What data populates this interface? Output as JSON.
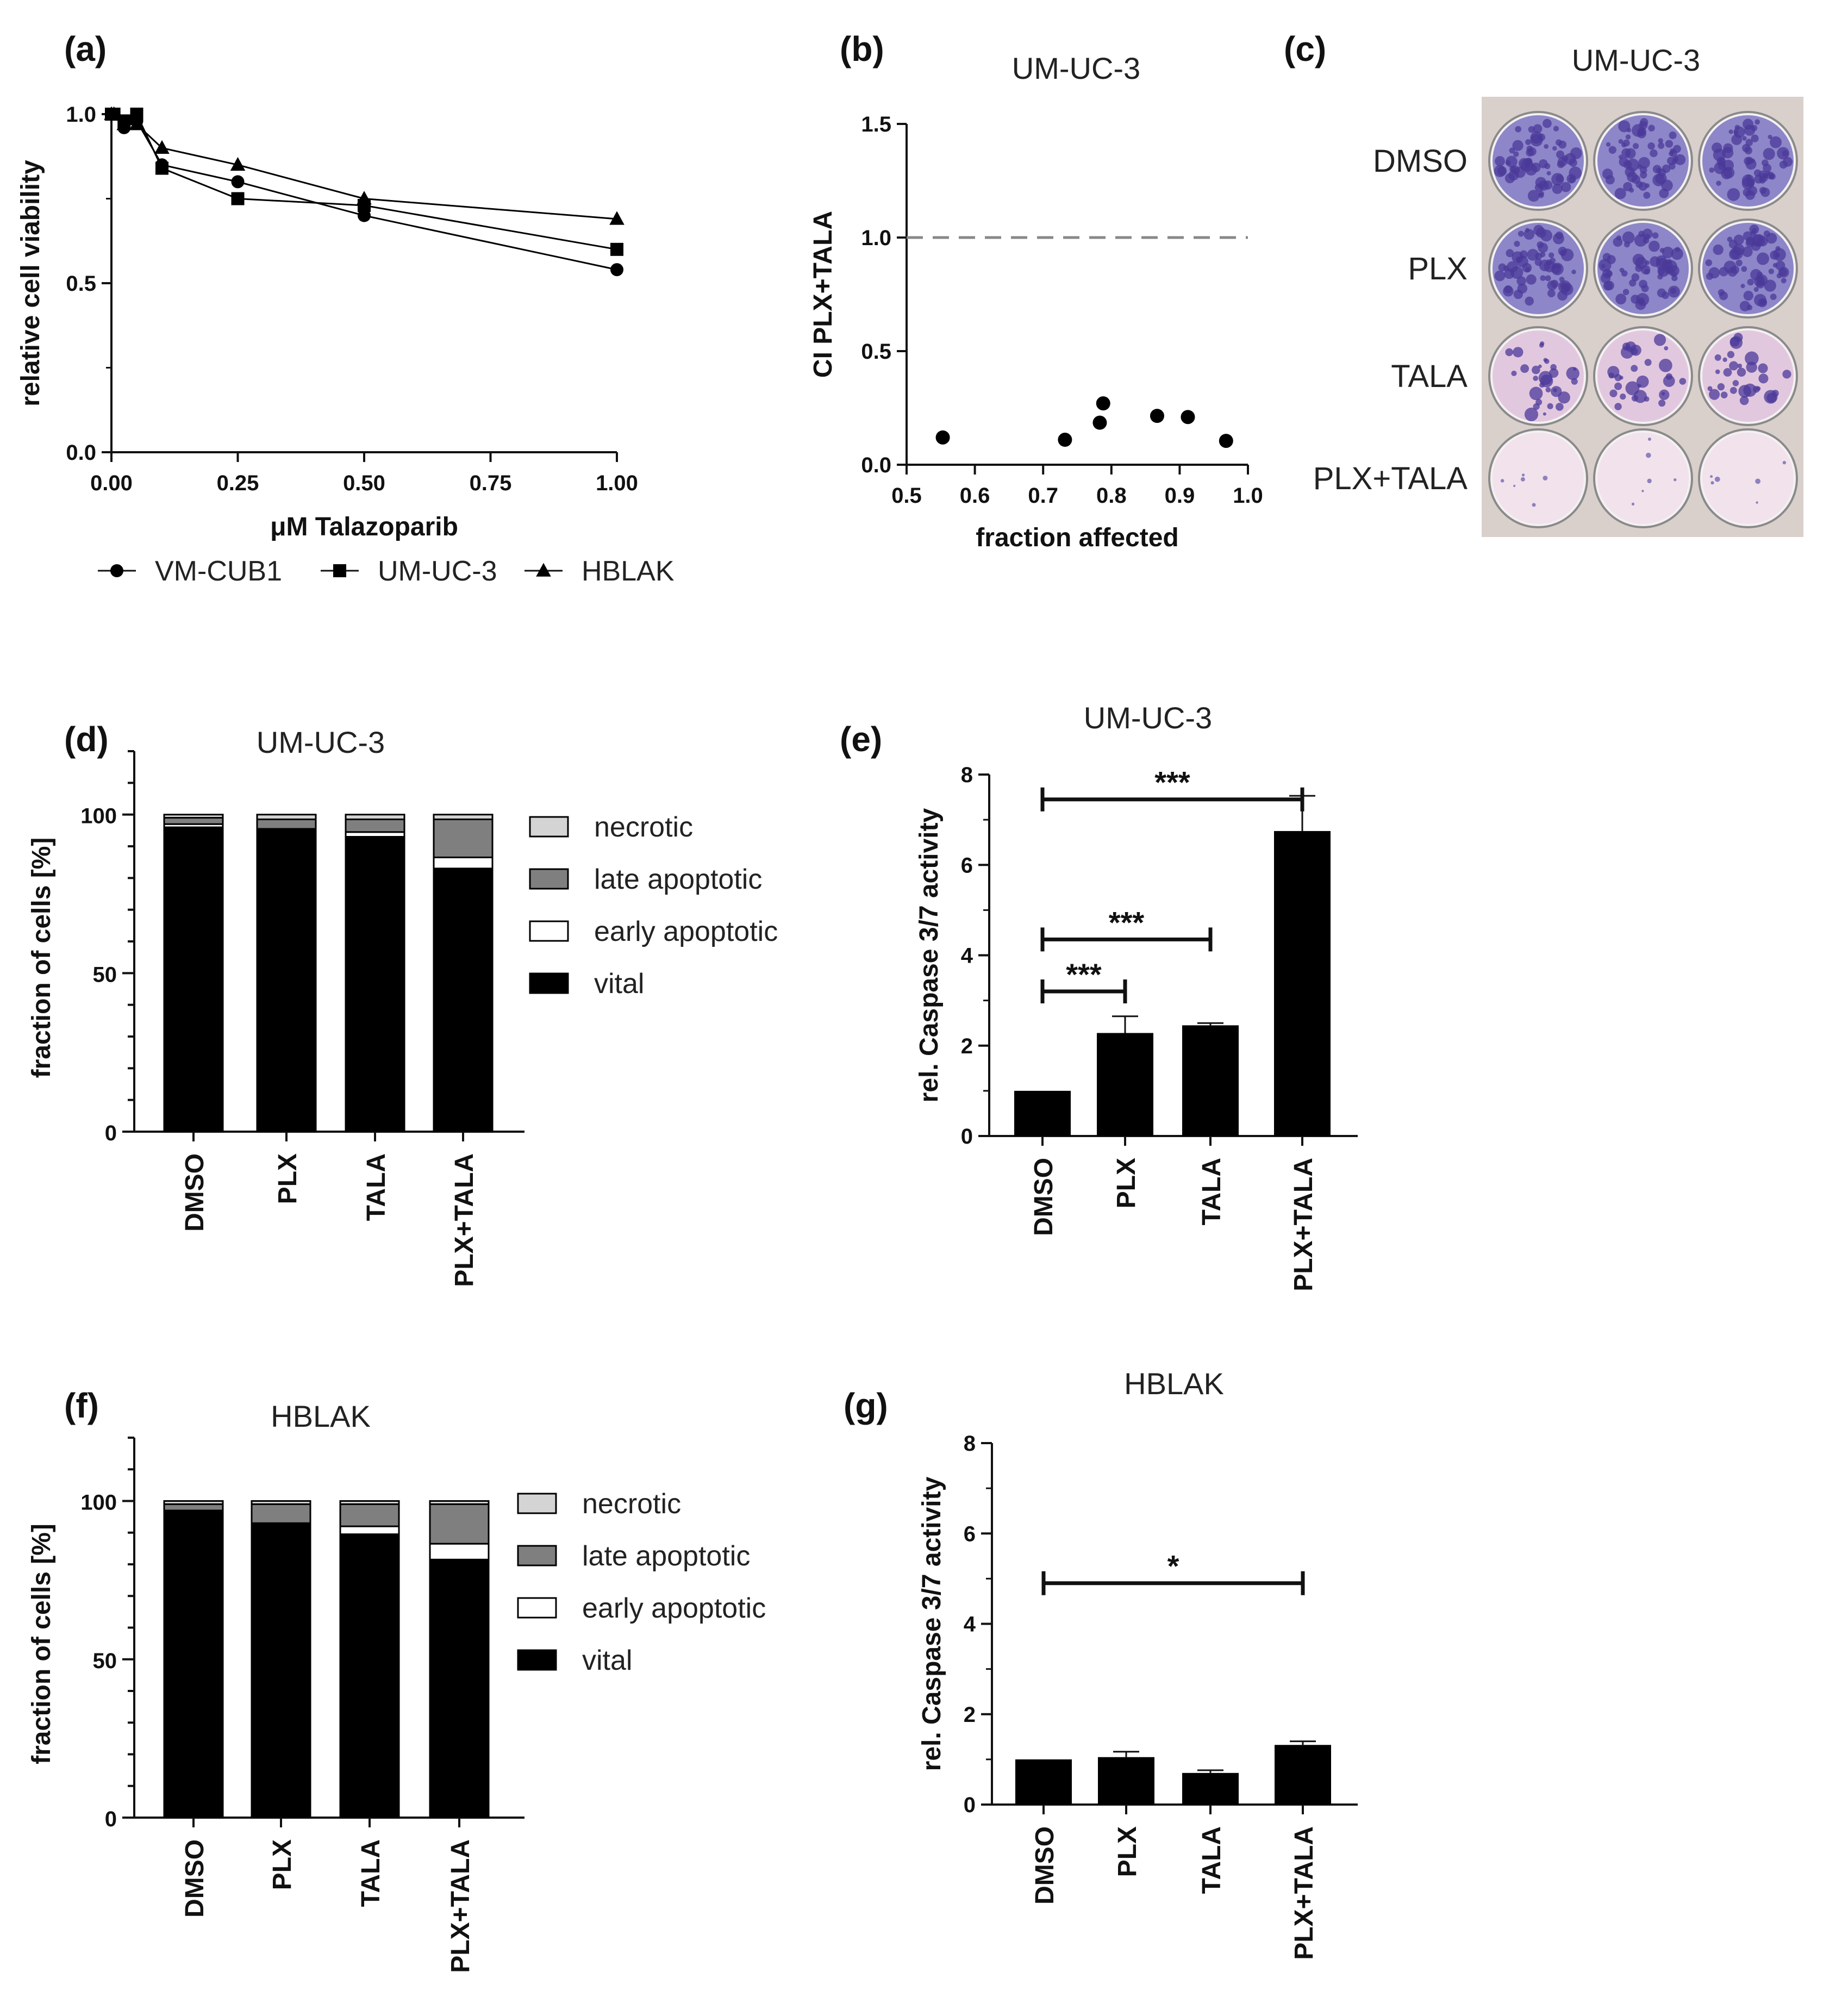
{
  "panels": {
    "a": {
      "label": "(a)"
    },
    "b": {
      "label": "(b)"
    },
    "c": {
      "label": "(c)",
      "title": "UM-UC-3",
      "rows": [
        "DMSO",
        "PLX",
        "TALA",
        "PLX+TALA"
      ]
    },
    "d": {
      "label": "(d)"
    },
    "e": {
      "label": "(e)"
    },
    "f": {
      "label": "(f)"
    },
    "g": {
      "label": "(g)"
    }
  },
  "colors": {
    "axis": "#111111",
    "black": "#000000",
    "late": "#7f7f7f",
    "necrotic": "#d4d4d4",
    "early": "#ffffff",
    "plate_bg": "#d9d0cc",
    "stain_dense": "#6a5aa8",
    "stain_light": "#ead7e6"
  },
  "chart_data": [
    {
      "id": "a",
      "type": "line",
      "title": "",
      "xlabel": "μM Talazoparib",
      "ylabel": "relative cell viability",
      "xlim": [
        0,
        1
      ],
      "ylim": [
        0,
        1.0
      ],
      "xticks": [
        "0.00",
        "0.25",
        "0.50",
        "0.75",
        "1.00"
      ],
      "yticks": [
        "0.0",
        "0.5",
        "1.0"
      ],
      "x": [
        0,
        0.005,
        0.025,
        0.05,
        0.1,
        0.25,
        0.5,
        1.0
      ],
      "series": [
        {
          "name": "VM-CUB1",
          "marker": "circle",
          "values": [
            1.0,
            1.0,
            0.96,
            0.98,
            0.85,
            0.8,
            0.7,
            0.54
          ]
        },
        {
          "name": "UM-UC-3",
          "marker": "square",
          "values": [
            1.0,
            1.0,
            0.98,
            1.0,
            0.84,
            0.75,
            0.73,
            0.6
          ]
        },
        {
          "name": "HBLAK",
          "marker": "triangle",
          "values": [
            1.0,
            1.0,
            0.97,
            0.97,
            0.9,
            0.85,
            0.75,
            0.69
          ]
        }
      ]
    },
    {
      "id": "b",
      "type": "scatter",
      "title": "UM-UC-3",
      "xlabel": "fraction affected",
      "ylabel": "CI PLX+TALA",
      "xlim": [
        0.5,
        1.0
      ],
      "ylim": [
        0,
        1.5
      ],
      "xticks": [
        "0.5",
        "0.6",
        "0.7",
        "0.8",
        "0.9",
        "1.0"
      ],
      "yticks": [
        "0.0",
        "0.5",
        "1.0",
        "1.5"
      ],
      "reference_line": 1.0,
      "points": [
        [
          0.553,
          0.12
        ],
        [
          0.732,
          0.11
        ],
        [
          0.783,
          0.185
        ],
        [
          0.788,
          0.27
        ],
        [
          0.867,
          0.215
        ],
        [
          0.912,
          0.21
        ],
        [
          0.968,
          0.105
        ]
      ]
    },
    {
      "id": "d",
      "type": "bar",
      "stacked": true,
      "title": "UM-UC-3",
      "xlabel": "",
      "ylabel": "fraction of cells [%]",
      "ylim": [
        0,
        120
      ],
      "yticks": [
        "0",
        "50",
        "100"
      ],
      "categories": [
        "DMSO",
        "PLX",
        "TALA",
        "PLX+TALA"
      ],
      "series": [
        {
          "name": "vital",
          "values": [
            96,
            95,
            93,
            83
          ]
        },
        {
          "name": "early apoptotic",
          "values": [
            1,
            0.5,
            1.5,
            3.5
          ]
        },
        {
          "name": "late apoptotic",
          "values": [
            2,
            3,
            4,
            12
          ]
        },
        {
          "name": "necrotic",
          "values": [
            1,
            1.5,
            1.5,
            1.5
          ]
        }
      ],
      "legend": [
        "necrotic",
        "late apoptotic",
        "early apoptotic",
        "vital"
      ]
    },
    {
      "id": "e",
      "type": "bar",
      "title": "UM-UC-3",
      "xlabel": "",
      "ylabel": "rel. Caspase 3/7 activity",
      "ylim": [
        0,
        8
      ],
      "yticks": [
        "0",
        "2",
        "4",
        "6",
        "8"
      ],
      "categories": [
        "DMSO",
        "PLX",
        "TALA",
        "PLX+TALA"
      ],
      "values": [
        1.0,
        2.28,
        2.45,
        6.75
      ],
      "errors": [
        0,
        0.37,
        0.05,
        0.78
      ],
      "significance": [
        {
          "from": 0,
          "to": 1,
          "y": 3.2,
          "label": "***"
        },
        {
          "from": 0,
          "to": 2,
          "y": 4.35,
          "label": "***"
        },
        {
          "from": 0,
          "to": 3,
          "y": 7.45,
          "label": "***"
        }
      ]
    },
    {
      "id": "f",
      "type": "bar",
      "stacked": true,
      "title": "HBLAK",
      "xlabel": "",
      "ylabel": "fraction of cells [%]",
      "ylim": [
        0,
        120
      ],
      "yticks": [
        "0",
        "50",
        "100"
      ],
      "categories": [
        "DMSO",
        "PLX",
        "TALA",
        "PLX+TALA"
      ],
      "series": [
        {
          "name": "vital",
          "values": [
            97,
            93,
            89.5,
            81.5
          ]
        },
        {
          "name": "early apoptotic",
          "values": [
            0,
            0,
            2.5,
            5
          ]
        },
        {
          "name": "late apoptotic",
          "values": [
            2,
            6,
            7,
            12.5
          ]
        },
        {
          "name": "necrotic",
          "values": [
            1,
            1,
            1,
            1
          ]
        }
      ],
      "legend": [
        "necrotic",
        "late apoptotic",
        "early apoptotic",
        "vital"
      ]
    },
    {
      "id": "g",
      "type": "bar",
      "title": "HBLAK",
      "xlabel": "",
      "ylabel": "rel. Caspase 3/7 activity",
      "ylim": [
        0,
        8
      ],
      "yticks": [
        "0",
        "2",
        "4",
        "6",
        "8"
      ],
      "categories": [
        "DMSO",
        "PLX",
        "TALA",
        "PLX+TALA"
      ],
      "values": [
        1.0,
        1.05,
        0.7,
        1.32
      ],
      "errors": [
        0,
        0.12,
        0.06,
        0.08
      ],
      "significance": [
        {
          "from": 0,
          "to": 3,
          "y": 4.9,
          "label": "*"
        }
      ]
    }
  ]
}
